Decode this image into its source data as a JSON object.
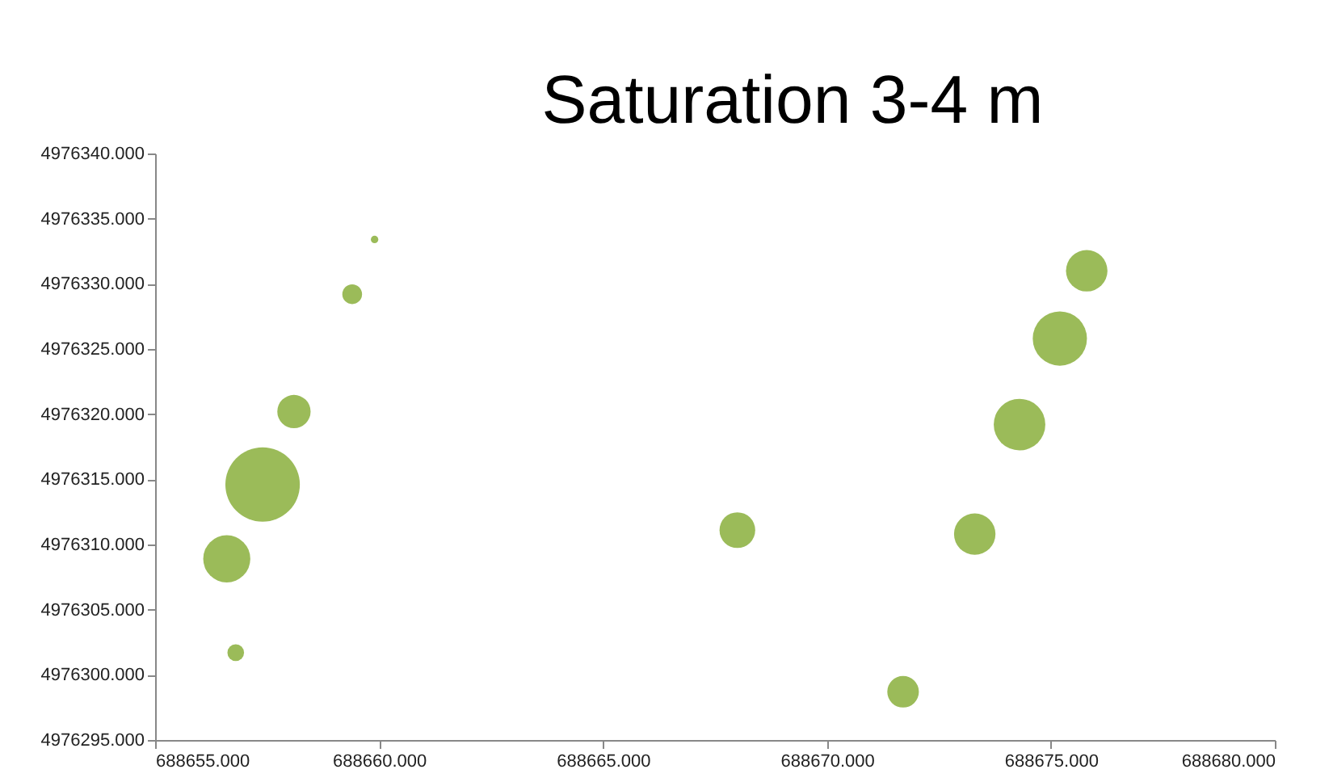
{
  "chart_data": {
    "type": "bubble",
    "title": "Saturation 3-4 m",
    "xlim": [
      688655,
      688680
    ],
    "ylim": [
      4976295,
      4976340
    ],
    "xticks": [
      {
        "value": 688655,
        "label": "688655.000"
      },
      {
        "value": 688660,
        "label": "688660.000"
      },
      {
        "value": 688665,
        "label": "688665.000"
      },
      {
        "value": 688670,
        "label": "688670.000"
      },
      {
        "value": 688675,
        "label": "688675.000"
      },
      {
        "value": 688680,
        "label": "688680.000"
      }
    ],
    "yticks": [
      {
        "value": 4976295,
        "label": "4976295.000"
      },
      {
        "value": 4976300,
        "label": "4976300.000"
      },
      {
        "value": 4976305,
        "label": "4976305.000"
      },
      {
        "value": 4976310,
        "label": "4976310.000"
      },
      {
        "value": 4976315,
        "label": "4976315.000"
      },
      {
        "value": 4976320,
        "label": "4976320.000"
      },
      {
        "value": 4976325,
        "label": "4976325.000"
      },
      {
        "value": 4976330,
        "label": "4976330.000"
      },
      {
        "value": 4976335,
        "label": "4976335.000"
      },
      {
        "value": 4976340,
        "label": "4976340.000"
      }
    ],
    "series": [
      {
        "color": "#9bbb59",
        "x": [
          688656.6,
          688657.4,
          688658.1,
          688659.4,
          688659.9,
          688656.8,
          688668.0,
          688671.7,
          688673.3,
          688674.3,
          688675.2,
          688675.8
        ],
        "values": [
          4976308.9,
          4976314.6,
          4976320.2,
          4976329.2,
          4976333.4,
          4976301.7,
          4976311.1,
          4976298.7,
          4976310.8,
          4976319.2,
          4976325.8,
          4976331.0
        ],
        "sizes": [
          0.4,
          1,
          0.2,
          0.07,
          0.01,
          0.05,
          0.23,
          0.18,
          0.31,
          0.48,
          0.53,
          0.31
        ]
      }
    ]
  }
}
